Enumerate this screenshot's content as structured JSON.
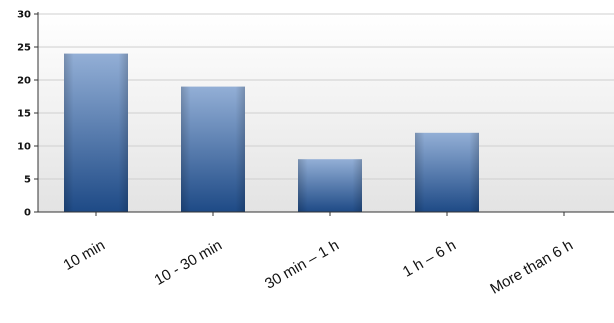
{
  "chart_data": {
    "type": "bar",
    "categories": [
      "10 min",
      "10 - 30 min",
      "30 min – 1 h",
      "1 h – 6 h",
      "More than 6 h"
    ],
    "values": [
      24,
      19,
      8,
      12,
      0
    ],
    "ylim": [
      0,
      30
    ],
    "yticks": [
      0,
      5,
      10,
      15,
      20,
      25,
      30
    ],
    "grid": true,
    "bar_color_top": "#93afd6",
    "bar_color_bottom": "#1e4a86"
  }
}
